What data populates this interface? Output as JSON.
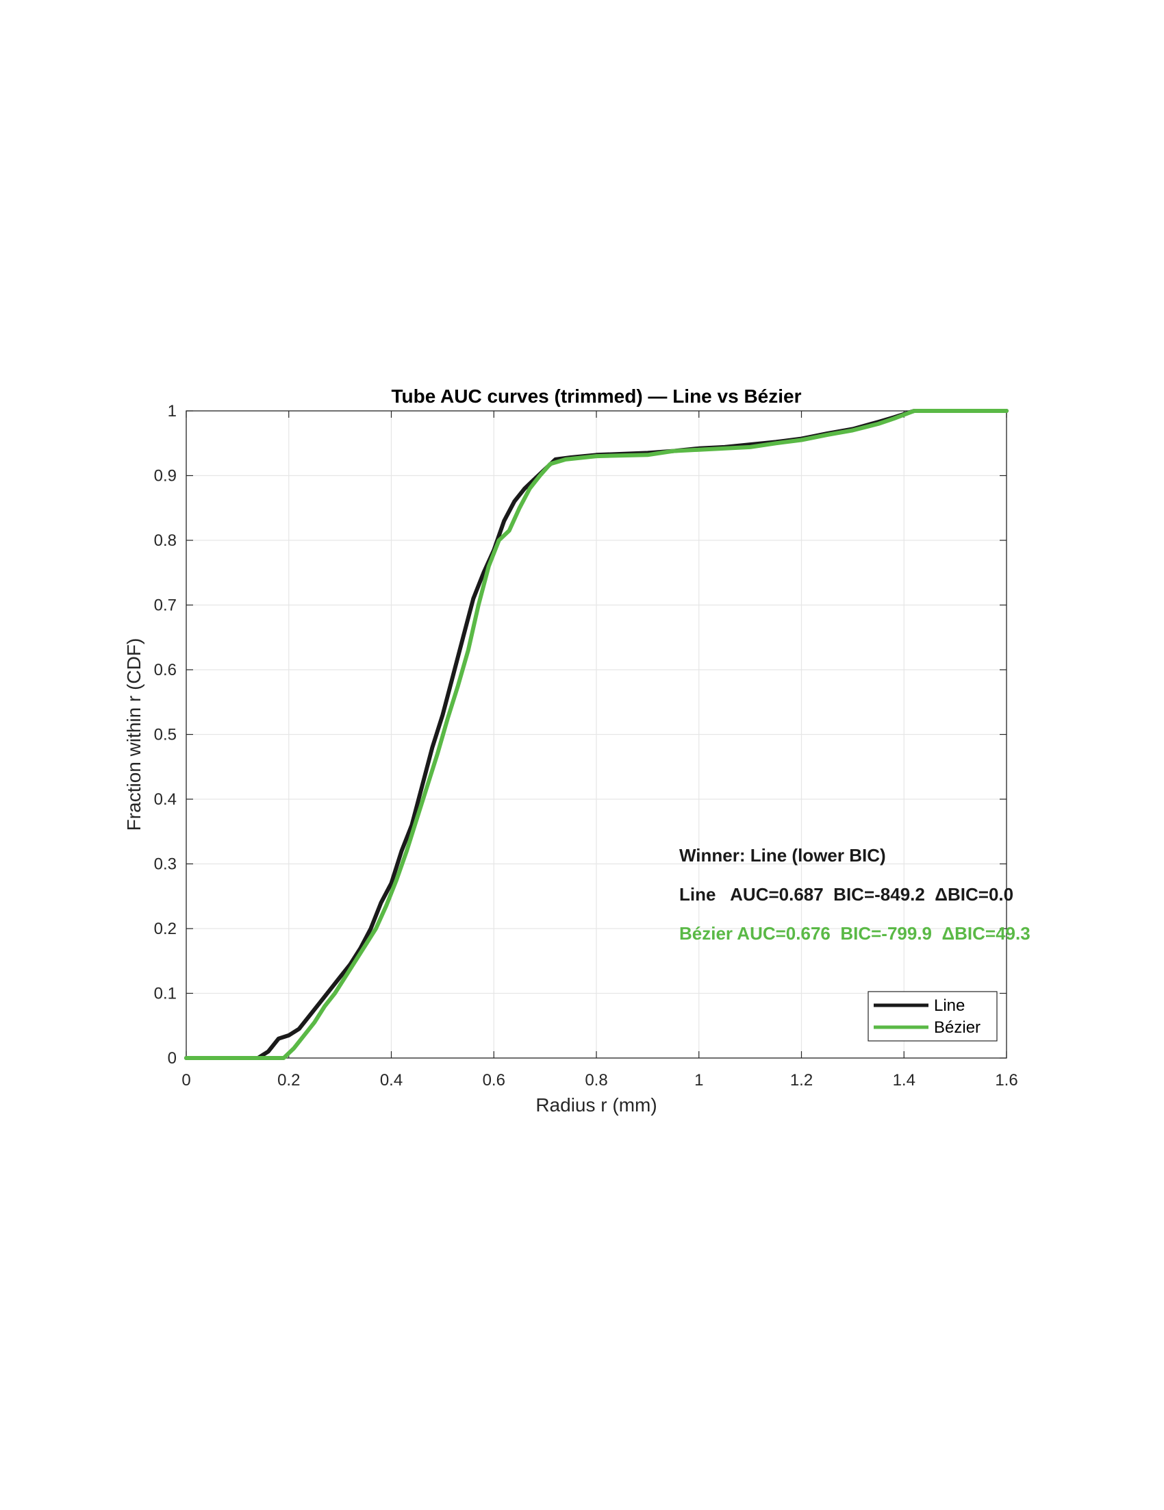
{
  "chart_data": {
    "type": "line",
    "title": "Tube AUC curves (trimmed) — Line vs Bézier",
    "xlabel": "Radius r (mm)",
    "ylabel": "Fraction within r (CDF)",
    "xlim": [
      0,
      1.6
    ],
    "ylim": [
      0,
      1
    ],
    "x_ticks": [
      "0",
      "0.2",
      "0.4",
      "0.6",
      "0.8",
      "1",
      "1.2",
      "1.4",
      "1.6"
    ],
    "y_ticks": [
      "0",
      "0.1",
      "0.2",
      "0.3",
      "0.4",
      "0.5",
      "0.6",
      "0.7",
      "0.8",
      "0.9",
      "1"
    ],
    "grid": true,
    "legend_position": "bottom-right",
    "series": [
      {
        "name": "Line",
        "color": "#1a1a1a",
        "points": [
          [
            0,
            0
          ],
          [
            0.14,
            0
          ],
          [
            0.16,
            0.01
          ],
          [
            0.18,
            0.03
          ],
          [
            0.2,
            0.035
          ],
          [
            0.22,
            0.045
          ],
          [
            0.24,
            0.065
          ],
          [
            0.26,
            0.085
          ],
          [
            0.28,
            0.105
          ],
          [
            0.3,
            0.125
          ],
          [
            0.32,
            0.145
          ],
          [
            0.34,
            0.17
          ],
          [
            0.36,
            0.2
          ],
          [
            0.38,
            0.24
          ],
          [
            0.4,
            0.27
          ],
          [
            0.42,
            0.32
          ],
          [
            0.44,
            0.36
          ],
          [
            0.46,
            0.42
          ],
          [
            0.48,
            0.48
          ],
          [
            0.5,
            0.53
          ],
          [
            0.52,
            0.59
          ],
          [
            0.54,
            0.65
          ],
          [
            0.56,
            0.71
          ],
          [
            0.58,
            0.75
          ],
          [
            0.6,
            0.785
          ],
          [
            0.62,
            0.83
          ],
          [
            0.64,
            0.86
          ],
          [
            0.66,
            0.88
          ],
          [
            0.68,
            0.895
          ],
          [
            0.7,
            0.91
          ],
          [
            0.72,
            0.925
          ],
          [
            0.75,
            0.928
          ],
          [
            0.8,
            0.932
          ],
          [
            0.9,
            0.935
          ],
          [
            0.95,
            0.938
          ],
          [
            1.0,
            0.942
          ],
          [
            1.05,
            0.944
          ],
          [
            1.1,
            0.948
          ],
          [
            1.15,
            0.952
          ],
          [
            1.2,
            0.957
          ],
          [
            1.25,
            0.965
          ],
          [
            1.3,
            0.972
          ],
          [
            1.35,
            0.983
          ],
          [
            1.38,
            0.99
          ],
          [
            1.42,
            1.0
          ],
          [
            1.6,
            1.0
          ]
        ]
      },
      {
        "name": "Bézier",
        "color": "#5ab946",
        "points": [
          [
            0,
            0
          ],
          [
            0.19,
            0
          ],
          [
            0.21,
            0.015
          ],
          [
            0.23,
            0.035
          ],
          [
            0.25,
            0.055
          ],
          [
            0.27,
            0.08
          ],
          [
            0.29,
            0.1
          ],
          [
            0.31,
            0.125
          ],
          [
            0.33,
            0.15
          ],
          [
            0.35,
            0.175
          ],
          [
            0.37,
            0.2
          ],
          [
            0.39,
            0.235
          ],
          [
            0.41,
            0.275
          ],
          [
            0.43,
            0.32
          ],
          [
            0.45,
            0.37
          ],
          [
            0.47,
            0.42
          ],
          [
            0.49,
            0.47
          ],
          [
            0.51,
            0.525
          ],
          [
            0.53,
            0.575
          ],
          [
            0.55,
            0.63
          ],
          [
            0.57,
            0.7
          ],
          [
            0.59,
            0.76
          ],
          [
            0.61,
            0.8
          ],
          [
            0.63,
            0.815
          ],
          [
            0.65,
            0.85
          ],
          [
            0.67,
            0.88
          ],
          [
            0.69,
            0.9
          ],
          [
            0.71,
            0.918
          ],
          [
            0.74,
            0.925
          ],
          [
            0.8,
            0.93
          ],
          [
            0.9,
            0.932
          ],
          [
            0.95,
            0.938
          ],
          [
            1.0,
            0.94
          ],
          [
            1.1,
            0.944
          ],
          [
            1.15,
            0.95
          ],
          [
            1.2,
            0.955
          ],
          [
            1.25,
            0.963
          ],
          [
            1.3,
            0.97
          ],
          [
            1.35,
            0.98
          ],
          [
            1.38,
            0.988
          ],
          [
            1.42,
            1.0
          ],
          [
            1.6,
            1.0
          ]
        ]
      }
    ],
    "annotations": [
      {
        "text": "Winner: Line (lower BIC)",
        "color": "#1a1a1a"
      },
      {
        "text": "Line   AUC=0.687  BIC=-849.2  ΔBIC=0.0",
        "color": "#1a1a1a"
      },
      {
        "text": "Bézier AUC=0.676  BIC=-799.9  ΔBIC=49.3",
        "color": "#5ab946"
      }
    ]
  }
}
